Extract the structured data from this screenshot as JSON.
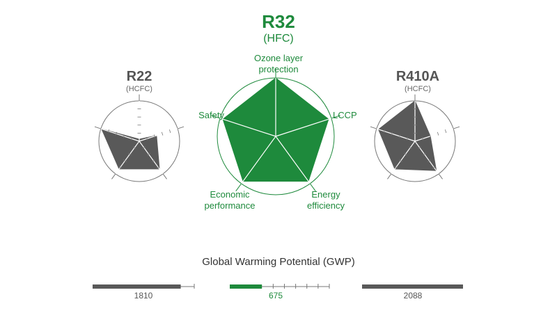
{
  "chart_data": {
    "type": "radar",
    "axes": [
      "Ozone layer protection",
      "LCCP",
      "Energy efficiency",
      "Economic performance",
      "Safety"
    ],
    "axis_labels": {
      "ozone": [
        "Ozone layer",
        "protection"
      ],
      "lccp": [
        "LCCP"
      ],
      "energy": [
        "Energy",
        "efficiency"
      ],
      "economic": [
        "Economic",
        "performance"
      ],
      "safety": [
        "Safety"
      ]
    },
    "max": 1,
    "series": [
      {
        "name": "R22",
        "type": "(HCFC)",
        "color": "#595959",
        "values": [
          0.05,
          0.45,
          0.85,
          0.85,
          0.98
        ]
      },
      {
        "name": "R32",
        "type": "(HFC)",
        "color": "#1e8a3c",
        "values": [
          1.0,
          0.95,
          0.95,
          0.95,
          0.95
        ]
      },
      {
        "name": "R410A",
        "type": "(HCFC)",
        "color": "#595959",
        "values": [
          1.0,
          0.4,
          0.9,
          0.85,
          0.95
        ]
      }
    ],
    "gwp": {
      "title": "Global Warming Potential (GWP)",
      "items": [
        {
          "name": "R22",
          "value": "1810",
          "color": "#595959"
        },
        {
          "name": "R32",
          "value": "675",
          "color": "#1e8a3c"
        },
        {
          "name": "R410A",
          "value": "2088",
          "color": "#595959"
        }
      ]
    }
  }
}
